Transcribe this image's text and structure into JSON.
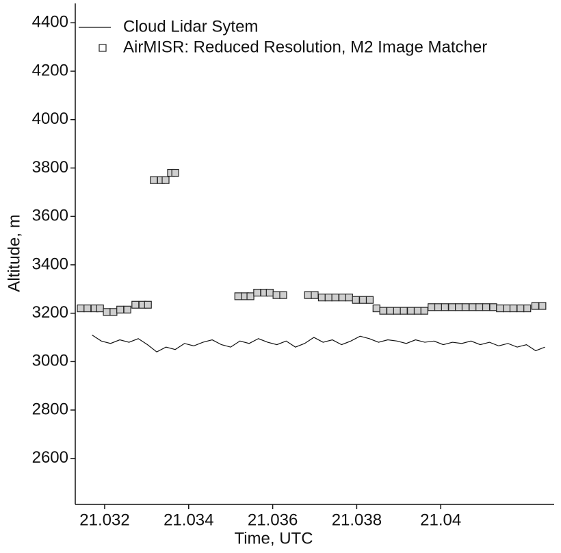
{
  "chart_data": {
    "type": "scatter",
    "xlabel": "Time, UTC",
    "ylabel": "Altitude, m",
    "xlim": [
      21.0313,
      21.0427
    ],
    "xticks": [
      21.032,
      21.034,
      21.036,
      21.038,
      21.04
    ],
    "ylim": [
      2410,
      4480
    ],
    "yticks": [
      2600,
      2800,
      3000,
      3200,
      3400,
      3600,
      3800,
      4000,
      4200,
      4400
    ],
    "legend": "upper left",
    "grid": false,
    "series": [
      {
        "name": "Cloud Lidar Sytem",
        "style": "line",
        "color": "#111111",
        "x": [
          21.0317,
          21.03192,
          21.03214,
          21.03236,
          21.03258,
          21.0328,
          21.03302,
          21.03324,
          21.03346,
          21.03368,
          21.0339,
          21.03412,
          21.03434,
          21.03456,
          21.03478,
          21.035,
          21.03522,
          21.03544,
          21.03566,
          21.03588,
          21.0361,
          21.03632,
          21.03654,
          21.03676,
          21.03698,
          21.0372,
          21.03742,
          21.03764,
          21.03786,
          21.03808,
          21.0383,
          21.03852,
          21.03874,
          21.03896,
          21.03918,
          21.0394,
          21.03962,
          21.03984,
          21.04006,
          21.04028,
          21.0405,
          21.04072,
          21.04094,
          21.04116,
          21.04138,
          21.0416,
          21.04182,
          21.04204,
          21.04226,
          21.04248
        ],
        "values": [
          3110,
          3085,
          3075,
          3090,
          3080,
          3095,
          3070,
          3040,
          3060,
          3050,
          3075,
          3065,
          3080,
          3090,
          3070,
          3060,
          3085,
          3075,
          3095,
          3080,
          3070,
          3085,
          3060,
          3075,
          3100,
          3080,
          3090,
          3070,
          3085,
          3105,
          3095,
          3080,
          3090,
          3085,
          3075,
          3090,
          3080,
          3085,
          3070,
          3080,
          3075,
          3085,
          3070,
          3080,
          3065,
          3075,
          3060,
          3070,
          3045,
          3060
        ]
      },
      {
        "name": "AirMISR: Reduced Resolution, M2 Image Matcher",
        "style": "square",
        "color": "#222222",
        "x": [
          21.03143,
          21.03159,
          21.03176,
          21.03189,
          21.03205,
          21.03221,
          21.03237,
          21.03254,
          21.03273,
          21.0329,
          21.03303,
          21.03317,
          21.03334,
          21.03345,
          21.03358,
          21.03368,
          21.03518,
          21.03534,
          21.03547,
          21.03563,
          21.0358,
          21.03593,
          21.03609,
          21.03625,
          21.03684,
          21.037,
          21.03717,
          21.03733,
          21.03749,
          21.03766,
          21.03782,
          21.03798,
          21.03815,
          21.03831,
          21.03847,
          21.03863,
          21.0388,
          21.03896,
          21.03912,
          21.03929,
          21.03945,
          21.03961,
          21.03978,
          21.03994,
          21.0401,
          21.04027,
          21.04043,
          21.04059,
          21.04076,
          21.04092,
          21.04108,
          21.04125,
          21.04141,
          21.04157,
          21.04173,
          21.0419,
          21.04206,
          21.04225,
          21.04242
        ],
        "values": [
          3220,
          3220,
          3220,
          3220,
          3205,
          3205,
          3215,
          3215,
          3235,
          3235,
          3235,
          3750,
          3750,
          3750,
          3780,
          3780,
          3270,
          3270,
          3270,
          3285,
          3285,
          3285,
          3275,
          3275,
          3275,
          3275,
          3265,
          3265,
          3265,
          3265,
          3265,
          3255,
          3255,
          3255,
          3220,
          3210,
          3210,
          3210,
          3210,
          3210,
          3210,
          3210,
          3225,
          3225,
          3225,
          3225,
          3225,
          3225,
          3225,
          3225,
          3225,
          3225,
          3220,
          3220,
          3220,
          3220,
          3220,
          3230,
          3230
        ]
      }
    ]
  }
}
